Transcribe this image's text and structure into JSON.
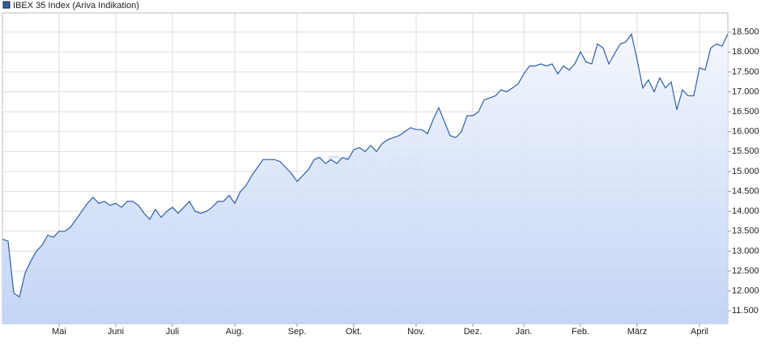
{
  "chart_data": {
    "type": "area",
    "title": "IBEX 35 Index (Ariva Indikation)",
    "watermark": "ARIVA.DE",
    "series": [
      {
        "name": "IBEX 35 Index (Ariva Indikation)",
        "color": "#2e5fa8",
        "values": [
          13300,
          13250,
          11950,
          11850,
          12450,
          12750,
          13000,
          13150,
          13400,
          13350,
          13500,
          13500,
          13600,
          13800,
          14000,
          14200,
          14350,
          14200,
          14250,
          14150,
          14200,
          14100,
          14250,
          14250,
          14150,
          13950,
          13800,
          14050,
          13850,
          14000,
          14100,
          13950,
          14100,
          14250,
          14000,
          13950,
          14000,
          14100,
          14250,
          14250,
          14400,
          14200,
          14500,
          14650,
          14900,
          15100,
          15300,
          15300,
          15300,
          15250,
          15100,
          14950,
          14750,
          14900,
          15050,
          15300,
          15350,
          15200,
          15300,
          15200,
          15350,
          15300,
          15550,
          15600,
          15500,
          15650,
          15500,
          15700,
          15800,
          15850,
          15900,
          16000,
          16100,
          16050,
          16050,
          15950,
          16300,
          16600,
          16250,
          15900,
          15850,
          16000,
          16400,
          16400,
          16500,
          16800,
          16850,
          16900,
          17050,
          17000,
          17100,
          17200,
          17450,
          17650,
          17650,
          17700,
          17650,
          17700,
          17450,
          17650,
          17550,
          17700,
          18000,
          17750,
          17700,
          18200,
          18100,
          17700,
          17950,
          18200,
          18250,
          18450,
          17800,
          17100,
          17300,
          17000,
          17350,
          17100,
          17250,
          16550,
          17050,
          16900,
          16900,
          17600,
          17550,
          18100,
          18200,
          18150,
          18450
        ]
      }
    ],
    "xlim": [
      0,
      128
    ],
    "xticks": [
      {
        "value": 10,
        "label": "Mai"
      },
      {
        "value": 20,
        "label": "Juni"
      },
      {
        "value": 30,
        "label": "Juli"
      },
      {
        "value": 41,
        "label": "Aug."
      },
      {
        "value": 52,
        "label": "Sep."
      },
      {
        "value": 62,
        "label": "Okt."
      },
      {
        "value": 73,
        "label": "Nov."
      },
      {
        "value": 83,
        "label": "Dez."
      },
      {
        "value": 92,
        "label": "Jan."
      },
      {
        "value": 102,
        "label": "Feb."
      },
      {
        "value": 112,
        "label": "März"
      },
      {
        "value": 123,
        "label": "April"
      }
    ],
    "ylim": [
      11180,
      18980
    ],
    "yticks": [
      {
        "value": 11500,
        "label": "11.500"
      },
      {
        "value": 12000,
        "label": "12.000"
      },
      {
        "value": 12500,
        "label": "12.500"
      },
      {
        "value": 13000,
        "label": "13.000"
      },
      {
        "value": 13500,
        "label": "13.500"
      },
      {
        "value": 14000,
        "label": "14.000"
      },
      {
        "value": 14500,
        "label": "14.500"
      },
      {
        "value": 15000,
        "label": "15.000"
      },
      {
        "value": 15500,
        "label": "15.500"
      },
      {
        "value": 16000,
        "label": "16.000"
      },
      {
        "value": 16500,
        "label": "16.500"
      },
      {
        "value": 17000,
        "label": "17.000"
      },
      {
        "value": 17500,
        "label": "17.500"
      },
      {
        "value": 18000,
        "label": "18.000"
      },
      {
        "value": 18500,
        "label": "18.500"
      }
    ],
    "grid": true
  }
}
